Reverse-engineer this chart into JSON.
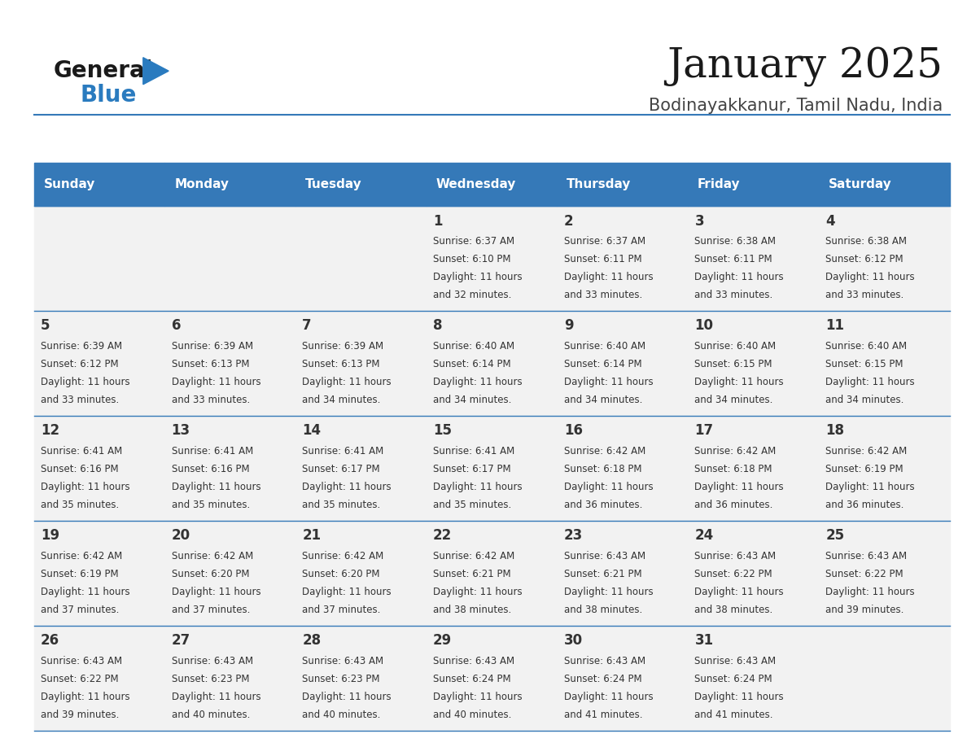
{
  "title": "January 2025",
  "subtitle": "Bodinayakkanur, Tamil Nadu, India",
  "header_bg_color": "#3579b8",
  "header_text_color": "#ffffff",
  "cell_bg_color": "#f2f2f2",
  "border_color": "#3579b8",
  "text_color": "#333333",
  "day_names": [
    "Sunday",
    "Monday",
    "Tuesday",
    "Wednesday",
    "Thursday",
    "Friday",
    "Saturday"
  ],
  "days": [
    {
      "day": 1,
      "col": 3,
      "row": 0,
      "sunrise": "6:37 AM",
      "sunset": "6:10 PM",
      "daylight_hours": 11,
      "daylight_min": 32
    },
    {
      "day": 2,
      "col": 4,
      "row": 0,
      "sunrise": "6:37 AM",
      "sunset": "6:11 PM",
      "daylight_hours": 11,
      "daylight_min": 33
    },
    {
      "day": 3,
      "col": 5,
      "row": 0,
      "sunrise": "6:38 AM",
      "sunset": "6:11 PM",
      "daylight_hours": 11,
      "daylight_min": 33
    },
    {
      "day": 4,
      "col": 6,
      "row": 0,
      "sunrise": "6:38 AM",
      "sunset": "6:12 PM",
      "daylight_hours": 11,
      "daylight_min": 33
    },
    {
      "day": 5,
      "col": 0,
      "row": 1,
      "sunrise": "6:39 AM",
      "sunset": "6:12 PM",
      "daylight_hours": 11,
      "daylight_min": 33
    },
    {
      "day": 6,
      "col": 1,
      "row": 1,
      "sunrise": "6:39 AM",
      "sunset": "6:13 PM",
      "daylight_hours": 11,
      "daylight_min": 33
    },
    {
      "day": 7,
      "col": 2,
      "row": 1,
      "sunrise": "6:39 AM",
      "sunset": "6:13 PM",
      "daylight_hours": 11,
      "daylight_min": 34
    },
    {
      "day": 8,
      "col": 3,
      "row": 1,
      "sunrise": "6:40 AM",
      "sunset": "6:14 PM",
      "daylight_hours": 11,
      "daylight_min": 34
    },
    {
      "day": 9,
      "col": 4,
      "row": 1,
      "sunrise": "6:40 AM",
      "sunset": "6:14 PM",
      "daylight_hours": 11,
      "daylight_min": 34
    },
    {
      "day": 10,
      "col": 5,
      "row": 1,
      "sunrise": "6:40 AM",
      "sunset": "6:15 PM",
      "daylight_hours": 11,
      "daylight_min": 34
    },
    {
      "day": 11,
      "col": 6,
      "row": 1,
      "sunrise": "6:40 AM",
      "sunset": "6:15 PM",
      "daylight_hours": 11,
      "daylight_min": 34
    },
    {
      "day": 12,
      "col": 0,
      "row": 2,
      "sunrise": "6:41 AM",
      "sunset": "6:16 PM",
      "daylight_hours": 11,
      "daylight_min": 35
    },
    {
      "day": 13,
      "col": 1,
      "row": 2,
      "sunrise": "6:41 AM",
      "sunset": "6:16 PM",
      "daylight_hours": 11,
      "daylight_min": 35
    },
    {
      "day": 14,
      "col": 2,
      "row": 2,
      "sunrise": "6:41 AM",
      "sunset": "6:17 PM",
      "daylight_hours": 11,
      "daylight_min": 35
    },
    {
      "day": 15,
      "col": 3,
      "row": 2,
      "sunrise": "6:41 AM",
      "sunset": "6:17 PM",
      "daylight_hours": 11,
      "daylight_min": 35
    },
    {
      "day": 16,
      "col": 4,
      "row": 2,
      "sunrise": "6:42 AM",
      "sunset": "6:18 PM",
      "daylight_hours": 11,
      "daylight_min": 36
    },
    {
      "day": 17,
      "col": 5,
      "row": 2,
      "sunrise": "6:42 AM",
      "sunset": "6:18 PM",
      "daylight_hours": 11,
      "daylight_min": 36
    },
    {
      "day": 18,
      "col": 6,
      "row": 2,
      "sunrise": "6:42 AM",
      "sunset": "6:19 PM",
      "daylight_hours": 11,
      "daylight_min": 36
    },
    {
      "day": 19,
      "col": 0,
      "row": 3,
      "sunrise": "6:42 AM",
      "sunset": "6:19 PM",
      "daylight_hours": 11,
      "daylight_min": 37
    },
    {
      "day": 20,
      "col": 1,
      "row": 3,
      "sunrise": "6:42 AM",
      "sunset": "6:20 PM",
      "daylight_hours": 11,
      "daylight_min": 37
    },
    {
      "day": 21,
      "col": 2,
      "row": 3,
      "sunrise": "6:42 AM",
      "sunset": "6:20 PM",
      "daylight_hours": 11,
      "daylight_min": 37
    },
    {
      "day": 22,
      "col": 3,
      "row": 3,
      "sunrise": "6:42 AM",
      "sunset": "6:21 PM",
      "daylight_hours": 11,
      "daylight_min": 38
    },
    {
      "day": 23,
      "col": 4,
      "row": 3,
      "sunrise": "6:43 AM",
      "sunset": "6:21 PM",
      "daylight_hours": 11,
      "daylight_min": 38
    },
    {
      "day": 24,
      "col": 5,
      "row": 3,
      "sunrise": "6:43 AM",
      "sunset": "6:22 PM",
      "daylight_hours": 11,
      "daylight_min": 38
    },
    {
      "day": 25,
      "col": 6,
      "row": 3,
      "sunrise": "6:43 AM",
      "sunset": "6:22 PM",
      "daylight_hours": 11,
      "daylight_min": 39
    },
    {
      "day": 26,
      "col": 0,
      "row": 4,
      "sunrise": "6:43 AM",
      "sunset": "6:22 PM",
      "daylight_hours": 11,
      "daylight_min": 39
    },
    {
      "day": 27,
      "col": 1,
      "row": 4,
      "sunrise": "6:43 AM",
      "sunset": "6:23 PM",
      "daylight_hours": 11,
      "daylight_min": 40
    },
    {
      "day": 28,
      "col": 2,
      "row": 4,
      "sunrise": "6:43 AM",
      "sunset": "6:23 PM",
      "daylight_hours": 11,
      "daylight_min": 40
    },
    {
      "day": 29,
      "col": 3,
      "row": 4,
      "sunrise": "6:43 AM",
      "sunset": "6:24 PM",
      "daylight_hours": 11,
      "daylight_min": 40
    },
    {
      "day": 30,
      "col": 4,
      "row": 4,
      "sunrise": "6:43 AM",
      "sunset": "6:24 PM",
      "daylight_hours": 11,
      "daylight_min": 41
    },
    {
      "day": 31,
      "col": 5,
      "row": 4,
      "sunrise": "6:43 AM",
      "sunset": "6:24 PM",
      "daylight_hours": 11,
      "daylight_min": 41
    }
  ],
  "num_rows": 5,
  "num_cols": 7,
  "logo_color": "#2a7bbf",
  "logo_dark_color": "#1a1a1a",
  "title_fontsize": 36,
  "subtitle_fontsize": 15,
  "dayname_fontsize": 11,
  "daynum_fontsize": 12,
  "info_fontsize": 8.5
}
